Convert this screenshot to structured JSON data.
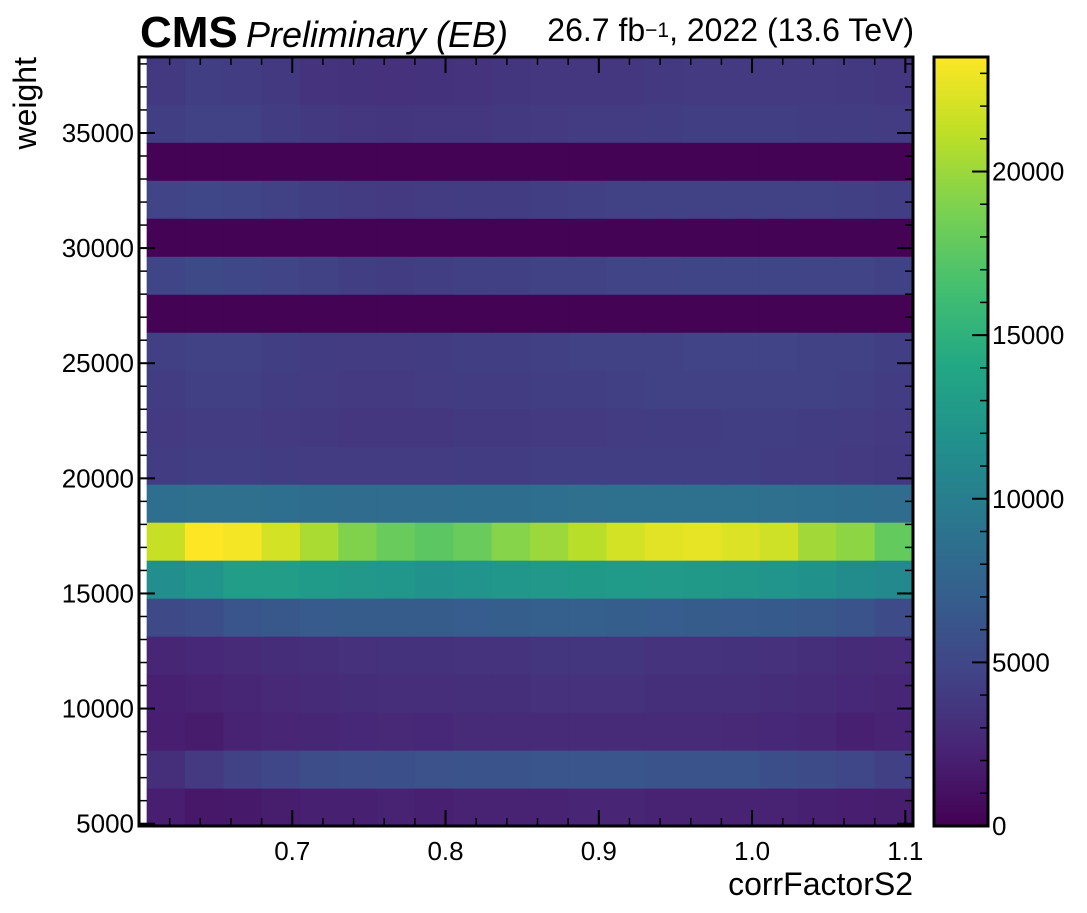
{
  "header": {
    "experiment": "CMS",
    "status": "Preliminary (EB)",
    "lumi_value": "26.7 fb",
    "lumi_exp": "−1",
    "lumi_rest": ", 2022 (13.6 TeV)"
  },
  "chart_data": {
    "type": "heatmap",
    "xlabel": "corrFactorS2",
    "ylabel": "weight",
    "xlim": [
      0.6,
      1.105
    ],
    "ylim": [
      4900,
      38300
    ],
    "x_edges": [
      0.605,
      0.63,
      0.655,
      0.68,
      0.705,
      0.73,
      0.755,
      0.78,
      0.805,
      0.83,
      0.855,
      0.88,
      0.905,
      0.93,
      0.955,
      0.98,
      1.005,
      1.03,
      1.055,
      1.08,
      1.105
    ],
    "y_edges": [
      4900,
      6550,
      8200,
      9850,
      11500,
      13150,
      14800,
      16450,
      18100,
      19750,
      21400,
      23050,
      24700,
      26350,
      28000,
      29650,
      31300,
      32950,
      34600,
      36250,
      38300
    ],
    "x_ticks": [
      0.7,
      0.8,
      0.9,
      1.0,
      1.1
    ],
    "x_tick_labels": [
      "0.7",
      "0.8",
      "0.9",
      "1.0",
      "1.1"
    ],
    "y_ticks": [
      5000,
      10000,
      15000,
      20000,
      25000,
      30000,
      35000
    ],
    "y_tick_labels": [
      "5000",
      "10000",
      "15000",
      "20000",
      "25000",
      "30000",
      "35000"
    ],
    "colorbar": {
      "colormap": "viridis",
      "range": [
        0,
        23500
      ],
      "ticks": [
        0,
        5000,
        10000,
        15000,
        20000
      ],
      "tick_labels": [
        "0",
        "5000",
        "10000",
        "15000",
        "20000"
      ]
    },
    "z_rows_bottom_to_top": [
      [
        2000,
        1500,
        1600,
        1900,
        2100,
        2100,
        2200,
        2100,
        2300,
        2300,
        2300,
        2400,
        2400,
        2300,
        2300,
        2300,
        2200,
        2100,
        2000,
        1900
      ],
      [
        3200,
        4000,
        4500,
        5000,
        5500,
        5700,
        5800,
        5900,
        6000,
        6100,
        6200,
        6200,
        6200,
        6100,
        6100,
        6000,
        5600,
        5300,
        5000,
        4400
      ],
      [
        2000,
        1800,
        2200,
        2400,
        2500,
        2600,
        2700,
        2600,
        2800,
        2800,
        2800,
        2800,
        2800,
        2800,
        2800,
        2700,
        2600,
        2500,
        2100,
        2200
      ],
      [
        2100,
        2200,
        2500,
        2700,
        2900,
        3000,
        3100,
        3100,
        3200,
        3200,
        3300,
        3300,
        3300,
        3200,
        3200,
        3200,
        3000,
        2900,
        2600,
        2500
      ],
      [
        2500,
        2600,
        2800,
        3000,
        3200,
        3300,
        3400,
        3400,
        3500,
        3500,
        3600,
        3600,
        3600,
        3500,
        3500,
        3400,
        3300,
        3200,
        2900,
        2800
      ],
      [
        5200,
        5500,
        6200,
        6500,
        6700,
        6800,
        6800,
        6800,
        6900,
        7000,
        7100,
        7100,
        7000,
        6900,
        6800,
        6700,
        6600,
        6400,
        6000,
        5400
      ],
      [
        11500,
        12200,
        13000,
        13000,
        12800,
        12500,
        12300,
        12000,
        12100,
        12300,
        12500,
        12600,
        12800,
        12700,
        12600,
        12400,
        12200,
        11800,
        11300,
        11000
      ],
      [
        21500,
        23500,
        23200,
        22000,
        20500,
        19000,
        18000,
        17500,
        18000,
        19200,
        20000,
        21000,
        22000,
        22500,
        22700,
        22300,
        21800,
        20200,
        19500,
        17800
      ],
      [
        8500,
        8600,
        8600,
        8500,
        8400,
        8300,
        8300,
        8300,
        8400,
        8400,
        8500,
        8600,
        8700,
        8700,
        8700,
        8700,
        8600,
        8500,
        8400,
        8300
      ],
      [
        4200,
        4300,
        4300,
        4200,
        4100,
        4100,
        4100,
        4100,
        4200,
        4200,
        4300,
        4300,
        4300,
        4300,
        4300,
        4300,
        4200,
        4100,
        4000,
        3900
      ],
      [
        4000,
        4100,
        4100,
        4000,
        3900,
        3800,
        3800,
        3800,
        3900,
        3900,
        4000,
        4000,
        4100,
        4200,
        4200,
        4300,
        4300,
        4200,
        4100,
        4000
      ],
      [
        4200,
        4400,
        4400,
        4200,
        4100,
        4000,
        4000,
        4100,
        4200,
        4200,
        4300,
        4300,
        4400,
        4500,
        4500,
        4600,
        4600,
        4500,
        4400,
        4200
      ],
      [
        4400,
        4600,
        4600,
        4300,
        4200,
        4100,
        4100,
        4200,
        4300,
        4300,
        4400,
        4500,
        4500,
        4600,
        4700,
        4700,
        4700,
        4600,
        4500,
        4300
      ],
      [
        100,
        100,
        100,
        100,
        100,
        100,
        100,
        100,
        100,
        100,
        100,
        100,
        100,
        100,
        100,
        100,
        100,
        100,
        100,
        100
      ],
      [
        4800,
        5200,
        5000,
        4700,
        4500,
        4300,
        4200,
        4300,
        4400,
        4400,
        4500,
        4600,
        4700,
        4700,
        4800,
        4800,
        4800,
        4700,
        4700,
        4600
      ],
      [
        100,
        100,
        100,
        100,
        100,
        100,
        100,
        100,
        100,
        100,
        100,
        100,
        100,
        100,
        100,
        100,
        100,
        100,
        100,
        100
      ],
      [
        4700,
        5000,
        4800,
        4500,
        4300,
        4100,
        4000,
        4100,
        4200,
        4200,
        4300,
        4400,
        4500,
        4500,
        4600,
        4600,
        4600,
        4500,
        4400,
        4300
      ],
      [
        100,
        100,
        100,
        100,
        100,
        100,
        100,
        100,
        100,
        100,
        100,
        100,
        100,
        100,
        100,
        100,
        100,
        100,
        100,
        100
      ],
      [
        4300,
        4600,
        4500,
        4200,
        3900,
        3700,
        3600,
        3700,
        3800,
        3900,
        4000,
        4100,
        4100,
        4200,
        4300,
        4300,
        4300,
        4200,
        4200,
        4100
      ],
      [
        3900,
        4300,
        4200,
        3900,
        3500,
        3400,
        3300,
        3400,
        3500,
        3600,
        3700,
        3800,
        3800,
        3900,
        4000,
        4000,
        4000,
        4000,
        3900,
        3800
      ]
    ]
  }
}
